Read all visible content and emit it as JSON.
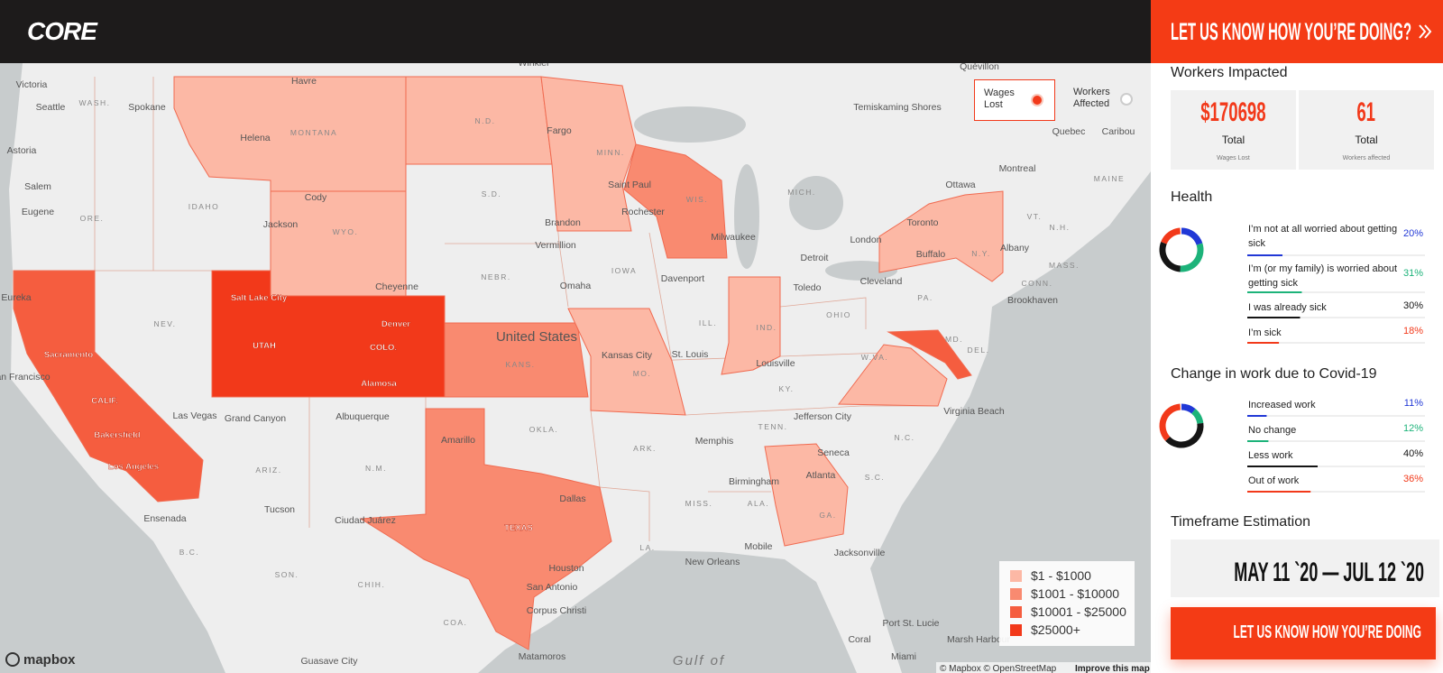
{
  "header": {
    "logo": "CORE"
  },
  "feedback_bar": {
    "title": "LET US KNOW HOW YOU’RE DOING?"
  },
  "map": {
    "toggle": [
      {
        "label": "Wages Lost",
        "selected": true
      },
      {
        "label": "Workers Affected",
        "selected": false
      }
    ],
    "legend": [
      {
        "label": "$1 - $1000",
        "color": "#fcb8a5"
      },
      {
        "label": "$1001 - $10000",
        "color": "#f98a70"
      },
      {
        "label": "$10001 - $25000",
        "color": "#f55d3f"
      },
      {
        "label": "$25000+",
        "color": "#f2391a"
      }
    ],
    "labels": [
      "Victoria",
      "Seattle",
      "WASH.",
      "Spokane",
      "Havre",
      "MONTANA",
      "Helena",
      "N.D.",
      "Fargo",
      "MINN.",
      "Astoria",
      "Salem",
      "Eugene",
      "ORE.",
      "IDAHO",
      "Cody",
      "WYO.",
      "Jackson",
      "S.D.",
      "Brandon",
      "Vermillion",
      "Saint Paul",
      "Rochester",
      "WIS.",
      "Milwaukee",
      "MICH.",
      "Detroit",
      "Toronto",
      "London",
      "Cleveland",
      "Toledo",
      "OHIO",
      "PA.",
      "Buffalo",
      "N.Y.",
      "Albany",
      "VT.",
      "N.H.",
      "MASS.",
      "CONN.",
      "Brookhaven",
      "Montreal",
      "Ottawa",
      "Quebec",
      "MAINE",
      "Temiskaming Shores",
      "Quévillon",
      "Caribou",
      "Winkler",
      "Eureka",
      "NEV.",
      "Salt Lake City",
      "UTAH",
      "Denver",
      "COLO.",
      "Alamosa",
      "Cheyenne",
      "NEBR.",
      "Omaha",
      "IOWA",
      "Davenport",
      "United States",
      "KANS.",
      "Kansas City",
      "MO.",
      "St. Louis",
      "ILL.",
      "IND.",
      "Louisville",
      "KY.",
      "W.VA.",
      "Sacramento",
      "San Francisco",
      "CALIF.",
      "Bakersfield",
      "Los Angeles",
      "Las Vegas",
      "Grand Canyon",
      "ARIZ.",
      "Tucson",
      "Albuquerque",
      "N.M.",
      "Amarillo",
      "OKLA.",
      "TEXAS",
      "Dallas",
      "Houston",
      "San Antonio",
      "Corpus Christi",
      "ARK.",
      "Memphis",
      "TENN.",
      "Jefferson City",
      "N.C.",
      "Virginia Beach",
      "MD.",
      "DEL.",
      "Atlanta",
      "GA.",
      "S.C.",
      "Seneca",
      "ALA.",
      "MISS.",
      "Birmingham",
      "LA.",
      "New Orleans",
      "Mobile",
      "Jacksonville",
      "Port St. Lucie",
      "Coral",
      "Miami",
      "Marsh Harbour",
      "Gulf of",
      "Ensenada",
      "Ciudad Juárez",
      "B.C.",
      "SON.",
      "CHIH.",
      "COA.",
      "Matamoros",
      "Guasave City"
    ],
    "logo": "mapbox",
    "attribution": "© Mapbox © OpenStreetMap",
    "improve": "Improve this map"
  },
  "sidebar": {
    "workers_impacted": {
      "title": "Workers Impacted",
      "stats": [
        {
          "value": "$170698",
          "label": "Total",
          "caption": "Wages Lost"
        },
        {
          "value": "61",
          "label": "Total",
          "caption": "Workers affected"
        }
      ]
    },
    "health": {
      "title": "Health",
      "items": [
        {
          "label": "I’m not at all worried about getting sick",
          "value": 20,
          "value_label": "20%",
          "color": "#2138d6"
        },
        {
          "label": "I’m (or my family) is worried about getting sick",
          "value": 31,
          "value_label": "31%",
          "color": "#1db37a"
        },
        {
          "label": "I was already sick",
          "value": 30,
          "value_label": "30%",
          "color": "#151515"
        },
        {
          "label": "I’m sick",
          "value": 18,
          "value_label": "18%",
          "color": "#f2391a"
        }
      ]
    },
    "work": {
      "title": "Change in work due to Covid-19",
      "items": [
        {
          "label": "Increased work",
          "value": 11,
          "value_label": "11%",
          "color": "#2138d6"
        },
        {
          "label": "No change",
          "value": 12,
          "value_label": "12%",
          "color": "#1db37a"
        },
        {
          "label": "Less work",
          "value": 40,
          "value_label": "40%",
          "color": "#151515"
        },
        {
          "label": "Out of work",
          "value": 36,
          "value_label": "36%",
          "color": "#f2391a"
        }
      ]
    },
    "timeframe": {
      "title": "Timeframe Estimation",
      "value": "MAY 11 `20 — JUL 12 `20"
    },
    "cta": "LET US KNOW HOW YOU’RE DOING"
  }
}
